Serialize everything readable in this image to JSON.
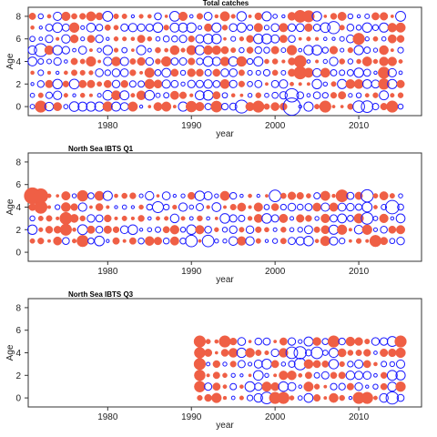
{
  "chart_data": [
    {
      "type": "scatter",
      "title": "Total catches",
      "xlabel": "year",
      "ylabel": "Age",
      "xlim": [
        1970.5,
        2017.5
      ],
      "ylim": [
        -0.8,
        8.8
      ],
      "xticks": [
        1980,
        1990,
        2000,
        2010
      ],
      "yticks": [
        0,
        2,
        4,
        6,
        8
      ],
      "years": [
        1971,
        2015
      ],
      "ages": [
        0,
        8
      ],
      "colors": {
        "positive": "#ef5f45",
        "negative": "#1a1aff"
      },
      "markers": {
        "positive": "filled circle",
        "negative": "open circle"
      },
      "highlights": [
        {
          "year": 2002,
          "age": 0,
          "value": -1.0
        },
        {
          "year": 2002,
          "age": 1,
          "value": -0.6
        },
        {
          "year": 1996,
          "age": 0,
          "value": -0.55
        },
        {
          "year": 1972,
          "age": 0,
          "value": 0.45
        },
        {
          "year": 1972,
          "age": 5,
          "value": -0.55
        },
        {
          "year": 2003,
          "age": 8,
          "value": 0.5
        },
        {
          "year": 2003,
          "age": 3,
          "value": 0.55
        },
        {
          "year": 2003,
          "age": 4,
          "value": 0.5
        },
        {
          "year": 2007,
          "age": 7,
          "value": -0.5
        },
        {
          "year": 2014,
          "age": 0,
          "value": 0.45
        },
        {
          "year": 2006,
          "age": 0,
          "value": 0.45
        },
        {
          "year": 2010,
          "age": 0,
          "value": -0.45
        },
        {
          "year": 2011,
          "age": 0,
          "value": -0.45
        },
        {
          "year": 1993,
          "age": 0,
          "value": 0.42
        },
        {
          "year": 1990,
          "age": 0,
          "value": 0.4
        },
        {
          "year": 1998,
          "age": 0,
          "value": 0.45
        },
        {
          "year": 2013,
          "age": 2,
          "value": 0.4
        },
        {
          "year": 2013,
          "age": 3,
          "value": 0.45
        },
        {
          "year": 2010,
          "age": 6,
          "value": 0.45
        },
        {
          "year": 2004,
          "age": 8,
          "value": 0.45
        }
      ]
    },
    {
      "type": "scatter",
      "title": "North Sea IBTS Q1",
      "xlabel": "year",
      "ylabel": "Age",
      "xlim": [
        1970.5,
        2017.5
      ],
      "ylim": [
        -0.8,
        8.8
      ],
      "xticks": [
        1980,
        1990,
        2000,
        2010
      ],
      "yticks": [
        0,
        2,
        4,
        6,
        8
      ],
      "years": [
        1971,
        2015
      ],
      "ages": [
        1,
        5
      ],
      "colors": {
        "positive": "#ef5f45",
        "negative": "#1a1aff"
      },
      "markers": {
        "positive": "filled circle",
        "negative": "open circle"
      },
      "highlights": [
        {
          "year": 1971,
          "age": 5,
          "value": 0.9
        },
        {
          "year": 1972,
          "age": 5,
          "value": 0.7
        },
        {
          "year": 1972,
          "age": 4,
          "value": 0.55
        },
        {
          "year": 1975,
          "age": 3,
          "value": 0.5
        },
        {
          "year": 1975,
          "age": 2,
          "value": 0.45
        },
        {
          "year": 1977,
          "age": 1,
          "value": 0.45
        },
        {
          "year": 1977,
          "age": 5,
          "value": 0.4
        },
        {
          "year": 2008,
          "age": 5,
          "value": 0.5
        },
        {
          "year": 2014,
          "age": 4,
          "value": -0.6
        },
        {
          "year": 2011,
          "age": 5,
          "value": -0.5
        },
        {
          "year": 2000,
          "age": 5,
          "value": -0.45
        },
        {
          "year": 1990,
          "age": 1,
          "value": -0.45
        },
        {
          "year": 1992,
          "age": 1,
          "value": -0.45
        },
        {
          "year": 1986,
          "age": 4,
          "value": -0.4
        },
        {
          "year": 2012,
          "age": 1,
          "value": 0.45
        },
        {
          "year": 2011,
          "age": 3,
          "value": -0.45
        }
      ]
    },
    {
      "type": "scatter",
      "title": "North Sea IBTS Q3",
      "xlabel": "year",
      "ylabel": "Age",
      "xlim": [
        1970.5,
        2017.5
      ],
      "ylim": [
        -0.8,
        8.8
      ],
      "xticks": [
        1980,
        1990,
        2000,
        2010
      ],
      "yticks": [
        0,
        2,
        4,
        6,
        8
      ],
      "years": [
        1991,
        2015
      ],
      "ages": [
        0,
        5
      ],
      "colors": {
        "positive": "#ef5f45",
        "negative": "#1a1aff"
      },
      "markers": {
        "positive": "filled circle",
        "negative": "open circle"
      },
      "highlights": [
        {
          "year": 1991,
          "age": 5,
          "value": 0.45
        },
        {
          "year": 1991,
          "age": 4,
          "value": 0.4
        },
        {
          "year": 1991,
          "age": 3,
          "value": 0.45
        },
        {
          "year": 1991,
          "age": 2,
          "value": 0.4
        },
        {
          "year": 1991,
          "age": 1,
          "value": 0.4
        },
        {
          "year": 1994,
          "age": 5,
          "value": 0.45
        },
        {
          "year": 2007,
          "age": 5,
          "value": 0.45
        },
        {
          "year": 2015,
          "age": 5,
          "value": 0.45
        },
        {
          "year": 2003,
          "age": 4,
          "value": -0.5
        },
        {
          "year": 2002,
          "age": 4,
          "value": -0.45
        },
        {
          "year": 2005,
          "age": 4,
          "value": -0.45
        },
        {
          "year": 2003,
          "age": 3,
          "value": -0.45
        },
        {
          "year": 2014,
          "age": 0,
          "value": -0.5
        },
        {
          "year": 2011,
          "age": 0,
          "value": 0.45
        },
        {
          "year": 2010,
          "age": 0,
          "value": 0.45
        },
        {
          "year": 2000,
          "age": 0,
          "value": 0.45
        },
        {
          "year": 1999,
          "age": 0,
          "value": -0.45
        },
        {
          "year": 2001,
          "age": 0,
          "value": 0.45
        }
      ]
    }
  ]
}
